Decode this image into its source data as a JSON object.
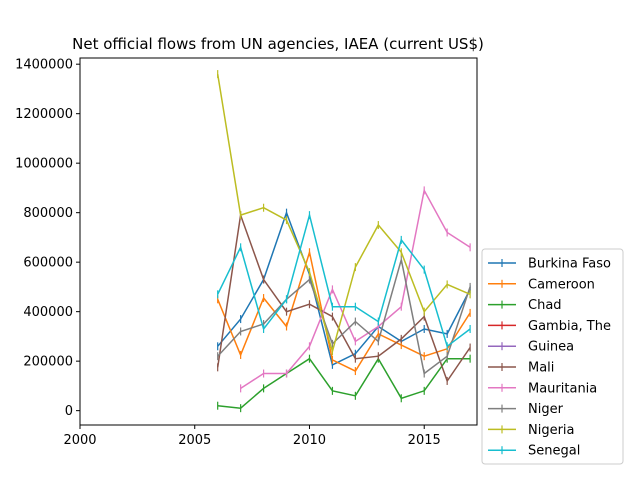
{
  "chart_data": {
    "type": "line",
    "title": "Net official flows from UN agencies, IAEA (current US$)",
    "xlabel": "",
    "ylabel": "",
    "xlim": [
      2000,
      2017.3
    ],
    "ylim": [
      -58000,
      1425000
    ],
    "x_ticks": [
      2000,
      2005,
      2010,
      2015
    ],
    "y_ticks": [
      0,
      200000,
      400000,
      600000,
      800000,
      1000000,
      1200000,
      1400000
    ],
    "grid": false,
    "legend_position": "lower-right-outside",
    "series": [
      {
        "name": "Burkina Faso",
        "color": "#1f77b4",
        "x": [
          2006,
          2007,
          2008,
          2009,
          2010,
          2011,
          2012,
          2013,
          2014,
          2015,
          2016,
          2017
        ],
        "values": [
          260000,
          370000,
          530000,
          800000,
          550000,
          185000,
          230000,
          340000,
          280000,
          330000,
          310000,
          490000
        ]
      },
      {
        "name": "Cameroon",
        "color": "#ff7f0e",
        "x": [
          2006,
          2007,
          2008,
          2009,
          2010,
          2011,
          2012,
          2013,
          2014,
          2015,
          2016,
          2017
        ],
        "values": [
          450000,
          225000,
          455000,
          340000,
          640000,
          205000,
          160000,
          310000,
          265000,
          220000,
          250000,
          395000
        ]
      },
      {
        "name": "Chad",
        "color": "#2ca02c",
        "x": [
          2006,
          2007,
          2008,
          2009,
          2010,
          2011,
          2012,
          2013,
          2014,
          2015,
          2016,
          2017
        ],
        "values": [
          20000,
          10000,
          90000,
          150000,
          210000,
          80000,
          60000,
          210000,
          50000,
          80000,
          210000,
          210000
        ]
      },
      {
        "name": "Gambia, The",
        "color": "#d62728",
        "x": [],
        "values": []
      },
      {
        "name": "Guinea",
        "color": "#9467bd",
        "x": [],
        "values": []
      },
      {
        "name": "Mali",
        "color": "#8c564b",
        "x": [
          2006,
          2007,
          2008,
          2009,
          2010,
          2011,
          2012,
          2013,
          2014,
          2015,
          2016,
          2017
        ],
        "values": [
          175000,
          790000,
          530000,
          400000,
          430000,
          380000,
          210000,
          220000,
          290000,
          380000,
          120000,
          255000
        ]
      },
      {
        "name": "Mauritania",
        "color": "#e377c2",
        "x": [
          2007,
          2008,
          2009,
          2010,
          2011,
          2012,
          2013,
          2014,
          2015,
          2016,
          2017
        ],
        "values": [
          90000,
          150000,
          150000,
          260000,
          490000,
          280000,
          340000,
          420000,
          890000,
          720000,
          660000
        ]
      },
      {
        "name": "Niger",
        "color": "#7f7f7f",
        "x": [
          2006,
          2007,
          2008,
          2009,
          2010,
          2011,
          2012,
          2013,
          2014,
          2015,
          2016,
          2017
        ],
        "values": [
          220000,
          320000,
          350000,
          450000,
          530000,
          270000,
          360000,
          280000,
          610000,
          150000,
          220000,
          500000
        ]
      },
      {
        "name": "Nigeria",
        "color": "#bcbd22",
        "x": [
          2006,
          2007,
          2008,
          2009,
          2010,
          2011,
          2012,
          2013,
          2014,
          2015,
          2016,
          2017
        ],
        "values": [
          1360000,
          790000,
          820000,
          770000,
          560000,
          240000,
          580000,
          750000,
          640000,
          400000,
          510000,
          470000
        ]
      },
      {
        "name": "Senegal",
        "color": "#17becf",
        "x": [
          2006,
          2007,
          2008,
          2009,
          2010,
          2011,
          2012,
          2013,
          2014,
          2015,
          2016,
          2017
        ],
        "values": [
          470000,
          660000,
          330000,
          450000,
          790000,
          420000,
          420000,
          360000,
          690000,
          570000,
          260000,
          330000
        ]
      }
    ]
  }
}
